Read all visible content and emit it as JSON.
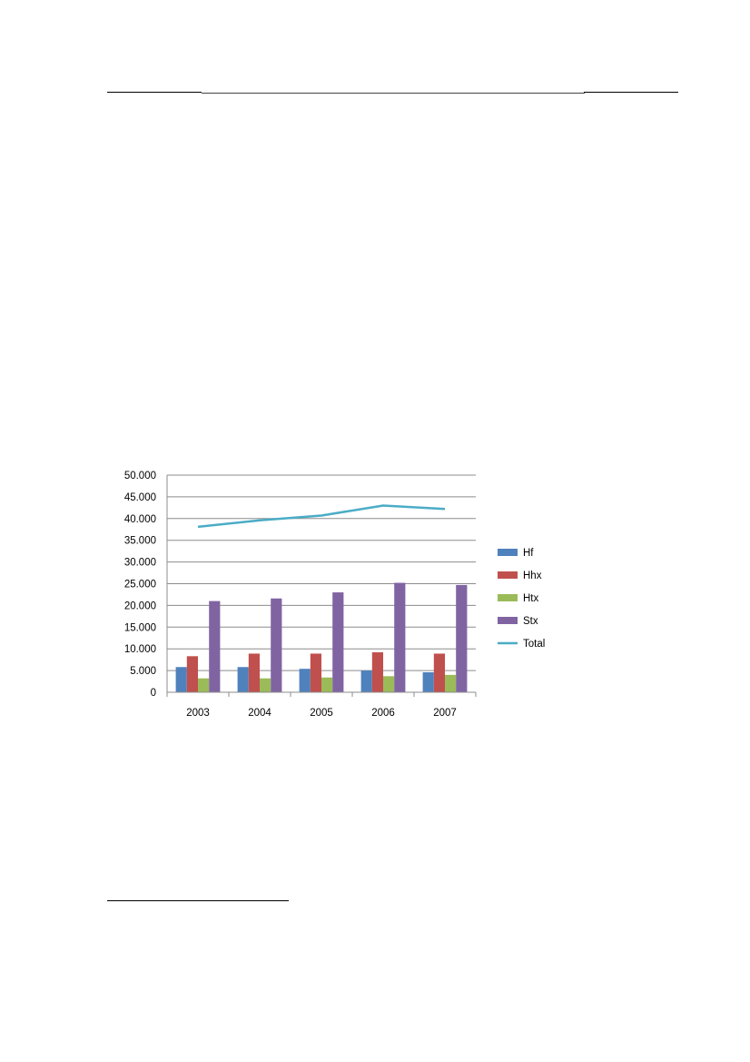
{
  "page": {
    "colors": {
      "rule": "#000000"
    }
  },
  "chart_data": {
    "type": "bar",
    "categories": [
      "2003",
      "2004",
      "2005",
      "2006",
      "2007"
    ],
    "series": [
      {
        "name": "Hf",
        "kind": "bar",
        "color": "#4F81BD",
        "values": [
          5800,
          5800,
          5400,
          5000,
          4600
        ]
      },
      {
        "name": "Hhx",
        "kind": "bar",
        "color": "#C0504D",
        "values": [
          8300,
          8900,
          8900,
          9200,
          8900
        ]
      },
      {
        "name": "Htx",
        "kind": "bar",
        "color": "#9BBB59",
        "values": [
          3200,
          3200,
          3400,
          3700,
          4000
        ]
      },
      {
        "name": "Stx",
        "kind": "bar",
        "color": "#8064A2",
        "values": [
          21000,
          21600,
          23000,
          25200,
          24700
        ]
      },
      {
        "name": "Total",
        "kind": "line",
        "color": "#4BACC6",
        "values": [
          38100,
          39600,
          40700,
          43000,
          42200
        ]
      }
    ],
    "y_ticks": [
      "0",
      "5.000",
      "10.000",
      "15.000",
      "20.000",
      "25.000",
      "30.000",
      "35.000",
      "40.000",
      "45.000",
      "50.000"
    ],
    "ylim": [
      0,
      50000
    ],
    "grid": true,
    "legend_position": "right",
    "title": "",
    "xlabel": "",
    "ylabel": ""
  }
}
